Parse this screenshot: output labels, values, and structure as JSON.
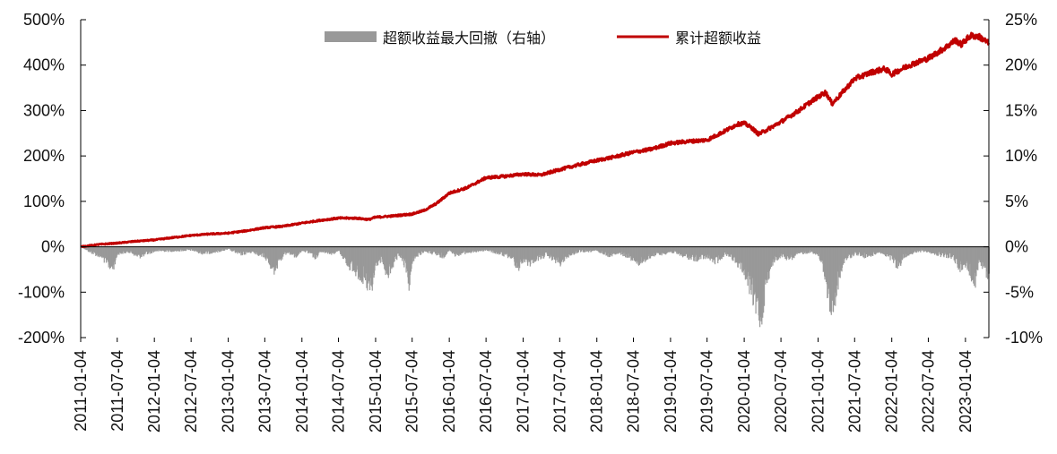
{
  "chart_data": {
    "type": "line+bar",
    "legend": {
      "placement": "top-center",
      "items": [
        {
          "label": "超额收益最大回撤（右轴）",
          "kind": "bar",
          "color": "#999999"
        },
        {
          "label": "累计超额收益",
          "kind": "line",
          "color": "#C00000"
        }
      ]
    },
    "x_ticks": [
      "2011-01-04",
      "2011-07-04",
      "2012-01-04",
      "2012-07-04",
      "2013-01-04",
      "2013-07-04",
      "2014-01-04",
      "2014-07-04",
      "2015-01-04",
      "2015-07-04",
      "2016-01-04",
      "2016-07-04",
      "2017-01-04",
      "2017-07-04",
      "2018-01-04",
      "2018-07-04",
      "2019-01-04",
      "2019-07-04",
      "2020-01-04",
      "2020-07-04",
      "2021-01-04",
      "2021-07-04",
      "2022-01-04",
      "2022-07-04",
      "2023-01-04"
    ],
    "x_range": [
      "2011-01-04",
      "2023-04-30"
    ],
    "left_axis": {
      "ylim": [
        -200,
        500
      ],
      "tick_labels": [
        "500%",
        "400%",
        "300%",
        "200%",
        "100%",
        "0%",
        "-100%",
        "-200%"
      ],
      "tick_values": [
        500,
        400,
        300,
        200,
        100,
        0,
        -100,
        -200
      ]
    },
    "right_axis": {
      "ylim": [
        -10,
        25
      ],
      "tick_labels": [
        "25%",
        "20%",
        "15%",
        "10%",
        "5%",
        "0%",
        "-5%",
        "-10%"
      ],
      "tick_values": [
        25,
        20,
        15,
        10,
        5,
        0,
        -5,
        -10
      ]
    },
    "series": [
      {
        "name": "累计超额收益",
        "axis": "left",
        "type": "line",
        "color": "#C00000",
        "points": [
          [
            "2011-01-04",
            0
          ],
          [
            "2011-04-01",
            5
          ],
          [
            "2011-07-04",
            8
          ],
          [
            "2011-10-01",
            12
          ],
          [
            "2012-01-04",
            15
          ],
          [
            "2012-04-01",
            20
          ],
          [
            "2012-07-04",
            25
          ],
          [
            "2012-10-01",
            28
          ],
          [
            "2013-01-04",
            30
          ],
          [
            "2013-04-01",
            35
          ],
          [
            "2013-07-04",
            42
          ],
          [
            "2013-10-01",
            45
          ],
          [
            "2014-01-04",
            52
          ],
          [
            "2014-04-01",
            58
          ],
          [
            "2014-07-04",
            63
          ],
          [
            "2014-10-01",
            63
          ],
          [
            "2014-12-01",
            60
          ],
          [
            "2015-01-04",
            65
          ],
          [
            "2015-04-01",
            68
          ],
          [
            "2015-07-04",
            72
          ],
          [
            "2015-09-01",
            80
          ],
          [
            "2015-11-01",
            95
          ],
          [
            "2016-01-04",
            118
          ],
          [
            "2016-04-01",
            130
          ],
          [
            "2016-07-04",
            152
          ],
          [
            "2016-10-01",
            155
          ],
          [
            "2017-01-04",
            160
          ],
          [
            "2017-04-01",
            158
          ],
          [
            "2017-07-04",
            170
          ],
          [
            "2017-10-01",
            180
          ],
          [
            "2018-01-04",
            190
          ],
          [
            "2018-04-01",
            198
          ],
          [
            "2018-07-04",
            208
          ],
          [
            "2018-10-01",
            215
          ],
          [
            "2019-01-04",
            228
          ],
          [
            "2019-04-01",
            232
          ],
          [
            "2019-07-04",
            235
          ],
          [
            "2019-10-01",
            255
          ],
          [
            "2019-12-01",
            270
          ],
          [
            "2020-01-04",
            272
          ],
          [
            "2020-02-10",
            262
          ],
          [
            "2020-03-15",
            248
          ],
          [
            "2020-04-15",
            255
          ],
          [
            "2020-07-04",
            275
          ],
          [
            "2020-10-01",
            300
          ],
          [
            "2020-12-01",
            320
          ],
          [
            "2021-01-04",
            330
          ],
          [
            "2021-02-10",
            340
          ],
          [
            "2021-03-15",
            315
          ],
          [
            "2021-04-15",
            330
          ],
          [
            "2021-07-04",
            370
          ],
          [
            "2021-10-01",
            385
          ],
          [
            "2021-12-01",
            392
          ],
          [
            "2022-01-04",
            380
          ],
          [
            "2022-04-01",
            400
          ],
          [
            "2022-07-04",
            415
          ],
          [
            "2022-10-01",
            440
          ],
          [
            "2022-11-15",
            455
          ],
          [
            "2022-12-15",
            445
          ],
          [
            "2023-01-04",
            455
          ],
          [
            "2023-02-01",
            465
          ],
          [
            "2023-03-15",
            462
          ],
          [
            "2023-04-30",
            448
          ]
        ]
      },
      {
        "name": "超额收益最大回撤（右轴）",
        "axis": "right",
        "type": "bar",
        "color": "#999999",
        "points": [
          [
            "2011-01-04",
            0
          ],
          [
            "2011-02-15",
            -0.6
          ],
          [
            "2011-04-15",
            -1.2
          ],
          [
            "2011-05-20",
            -2.2
          ],
          [
            "2011-06-10",
            -2.6
          ],
          [
            "2011-07-04",
            -0.8
          ],
          [
            "2011-09-01",
            -0.6
          ],
          [
            "2011-10-15",
            -1.2
          ],
          [
            "2011-12-01",
            -0.8
          ],
          [
            "2012-01-04",
            -0.5
          ],
          [
            "2012-04-01",
            -0.5
          ],
          [
            "2012-07-04",
            -0.4
          ],
          [
            "2012-09-01",
            -0.8
          ],
          [
            "2012-11-01",
            -0.6
          ],
          [
            "2013-01-04",
            -0.3
          ],
          [
            "2013-03-01",
            -0.9
          ],
          [
            "2013-05-01",
            -0.6
          ],
          [
            "2013-07-04",
            -1.2
          ],
          [
            "2013-08-15",
            -2.8
          ],
          [
            "2013-09-20",
            -1.5
          ],
          [
            "2013-10-20",
            -0.6
          ],
          [
            "2013-12-01",
            -1.2
          ],
          [
            "2014-01-04",
            -0.4
          ],
          [
            "2014-02-15",
            -0.8
          ],
          [
            "2014-03-10",
            -1.4
          ],
          [
            "2014-04-01",
            -0.5
          ],
          [
            "2014-06-01",
            -0.8
          ],
          [
            "2014-07-04",
            -0.5
          ],
          [
            "2014-08-01",
            -1.5
          ],
          [
            "2014-09-01",
            -2.5
          ],
          [
            "2014-10-01",
            -3.0
          ],
          [
            "2014-11-01",
            -3.8
          ],
          [
            "2014-11-20",
            -4.5
          ],
          [
            "2014-12-15",
            -5.2
          ],
          [
            "2015-01-04",
            -2.0
          ],
          [
            "2015-02-01",
            -1.5
          ],
          [
            "2015-03-01",
            -3.5
          ],
          [
            "2015-04-01",
            -2.0
          ],
          [
            "2015-05-01",
            -1.0
          ],
          [
            "2015-06-01",
            -2.5
          ],
          [
            "2015-06-20",
            -4.8
          ],
          [
            "2015-07-04",
            -1.5
          ],
          [
            "2015-08-01",
            -1.0
          ],
          [
            "2015-09-01",
            -0.5
          ],
          [
            "2015-12-01",
            -1.2
          ],
          [
            "2016-01-04",
            -0.4
          ],
          [
            "2016-02-01",
            -1.0
          ],
          [
            "2016-03-01",
            -0.8
          ],
          [
            "2016-05-01",
            -0.6
          ],
          [
            "2016-07-04",
            -0.4
          ],
          [
            "2016-09-01",
            -0.8
          ],
          [
            "2016-11-01",
            -1.2
          ],
          [
            "2016-12-10",
            -2.5
          ],
          [
            "2017-01-04",
            -1.5
          ],
          [
            "2017-02-01",
            -2.0
          ],
          [
            "2017-03-01",
            -1.5
          ],
          [
            "2017-05-01",
            -1.0
          ],
          [
            "2017-07-04",
            -2.0
          ],
          [
            "2017-08-01",
            -1.2
          ],
          [
            "2017-10-01",
            -0.6
          ],
          [
            "2018-01-04",
            -0.5
          ],
          [
            "2018-03-01",
            -1.0
          ],
          [
            "2018-05-01",
            -0.8
          ],
          [
            "2018-07-04",
            -1.5
          ],
          [
            "2018-08-01",
            -2.0
          ],
          [
            "2018-10-01",
            -1.0
          ],
          [
            "2018-12-01",
            -0.8
          ],
          [
            "2019-01-04",
            -0.6
          ],
          [
            "2019-03-01",
            -1.0
          ],
          [
            "2019-05-01",
            -1.5
          ],
          [
            "2019-07-04",
            -1.2
          ],
          [
            "2019-08-15",
            -1.8
          ],
          [
            "2019-10-01",
            -0.8
          ],
          [
            "2019-11-15",
            -1.5
          ],
          [
            "2019-12-15",
            -2.5
          ],
          [
            "2020-01-04",
            -3.0
          ],
          [
            "2020-02-01",
            -5.0
          ],
          [
            "2020-03-01",
            -7.0
          ],
          [
            "2020-03-25",
            -8.3
          ],
          [
            "2020-04-15",
            -5.0
          ],
          [
            "2020-05-15",
            -2.0
          ],
          [
            "2020-07-04",
            -1.0
          ],
          [
            "2020-08-15",
            -1.5
          ],
          [
            "2020-10-01",
            -0.8
          ],
          [
            "2020-12-01",
            -0.6
          ],
          [
            "2021-01-04",
            -1.0
          ],
          [
            "2021-02-01",
            -3.0
          ],
          [
            "2021-02-25",
            -6.5
          ],
          [
            "2021-03-15",
            -7.0
          ],
          [
            "2021-04-15",
            -4.0
          ],
          [
            "2021-05-15",
            -1.5
          ],
          [
            "2021-07-04",
            -0.8
          ],
          [
            "2021-09-01",
            -1.2
          ],
          [
            "2021-11-01",
            -0.6
          ],
          [
            "2022-01-04",
            -1.5
          ],
          [
            "2022-02-01",
            -2.5
          ],
          [
            "2022-03-01",
            -1.2
          ],
          [
            "2022-04-01",
            -0.8
          ],
          [
            "2022-06-01",
            -0.5
          ],
          [
            "2022-07-04",
            -0.6
          ],
          [
            "2022-09-01",
            -1.0
          ],
          [
            "2022-11-01",
            -1.2
          ],
          [
            "2022-12-01",
            -2.5
          ],
          [
            "2023-01-04",
            -2.0
          ],
          [
            "2023-02-01",
            -3.5
          ],
          [
            "2023-02-20",
            -4.0
          ],
          [
            "2023-03-10",
            -1.5
          ],
          [
            "2023-04-01",
            -2.5
          ],
          [
            "2023-04-30",
            -3.8
          ]
        ]
      }
    ],
    "grid": false
  }
}
